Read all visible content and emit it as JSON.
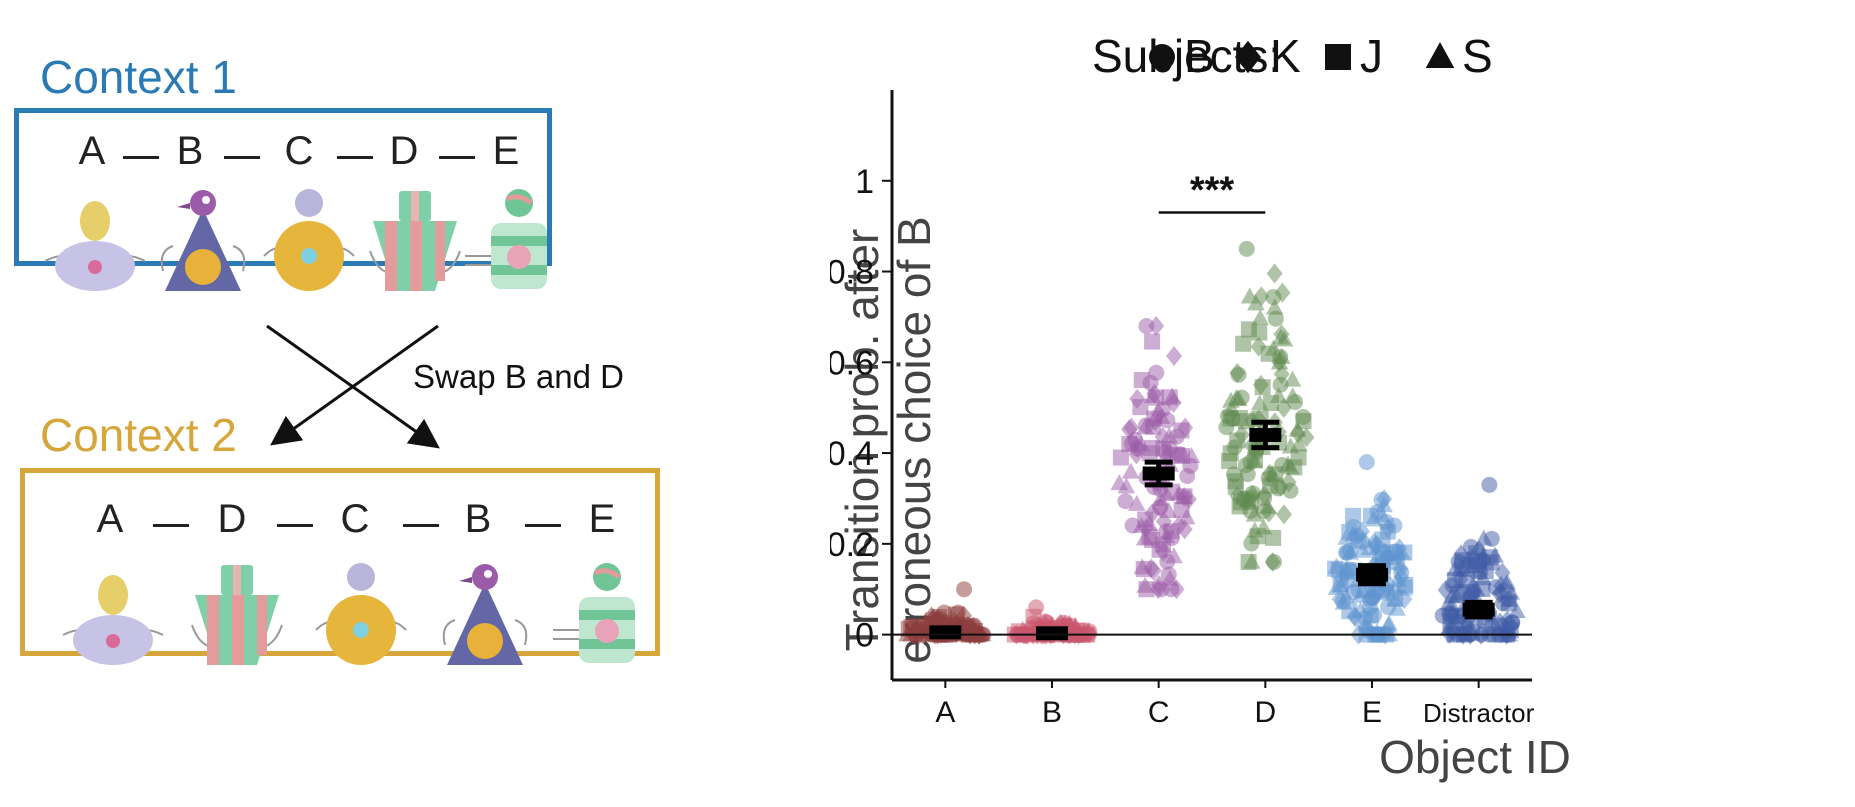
{
  "left": {
    "context1": {
      "title": "Context 1",
      "color": "#2a7bb5",
      "sequence": [
        "A",
        "B",
        "C",
        "D",
        "E"
      ]
    },
    "context2": {
      "title": "Context 2",
      "color": "#d6a63a",
      "sequence": [
        "A",
        "D",
        "C",
        "B",
        "E"
      ]
    },
    "swap_label": "Swap B and D",
    "objects": {
      "A": "lavender-egg-creature-icon",
      "B": "purple-cone-bird-icon",
      "C": "yellow-ball-creature-icon",
      "D": "striped-funnel-creature-icon",
      "E": "green-striped-jar-creature-icon"
    }
  },
  "chart_data": {
    "type": "scatter",
    "title": "",
    "legend": {
      "title": "Subjects:",
      "placement": "top",
      "entries": [
        {
          "marker": "circle",
          "label": "B"
        },
        {
          "marker": "diamond",
          "label": "K"
        },
        {
          "marker": "square",
          "label": "J"
        },
        {
          "marker": "triangle",
          "label": "S"
        }
      ]
    },
    "xlabel": "Object ID",
    "ylabel": [
      "Transition prob. after",
      "erroneous choice of B"
    ],
    "ylim": [
      -0.1,
      1.2
    ],
    "yticks": [
      0,
      0.2,
      0.4,
      0.6,
      0.8,
      1
    ],
    "ytick_labels": [
      "0",
      "0.2",
      "0.4",
      "0.6",
      "0.8",
      "1"
    ],
    "categories": [
      "A",
      "B",
      "C",
      "D",
      "E",
      "Distractor"
    ],
    "colors": [
      "#8c3b3b",
      "#c9566e",
      "#9b5ba8",
      "#5f8a4f",
      "#5d93cf",
      "#3f5ca6"
    ],
    "means": [
      0.005,
      0.003,
      0.355,
      0.44,
      0.132,
      0.055
    ],
    "sem": [
      0.008,
      0.008,
      0.025,
      0.028,
      0.02,
      0.016
    ],
    "ranges": [
      [
        0,
        0.1
      ],
      [
        0,
        0.06
      ],
      [
        0.1,
        0.68
      ],
      [
        0.16,
        0.85
      ],
      [
        0,
        0.38
      ],
      [
        0,
        0.33
      ]
    ],
    "n_points": [
      90,
      90,
      110,
      120,
      120,
      110
    ],
    "significance": {
      "between": [
        "C",
        "D"
      ],
      "label": "***",
      "y": 0.93
    },
    "grid": false
  }
}
